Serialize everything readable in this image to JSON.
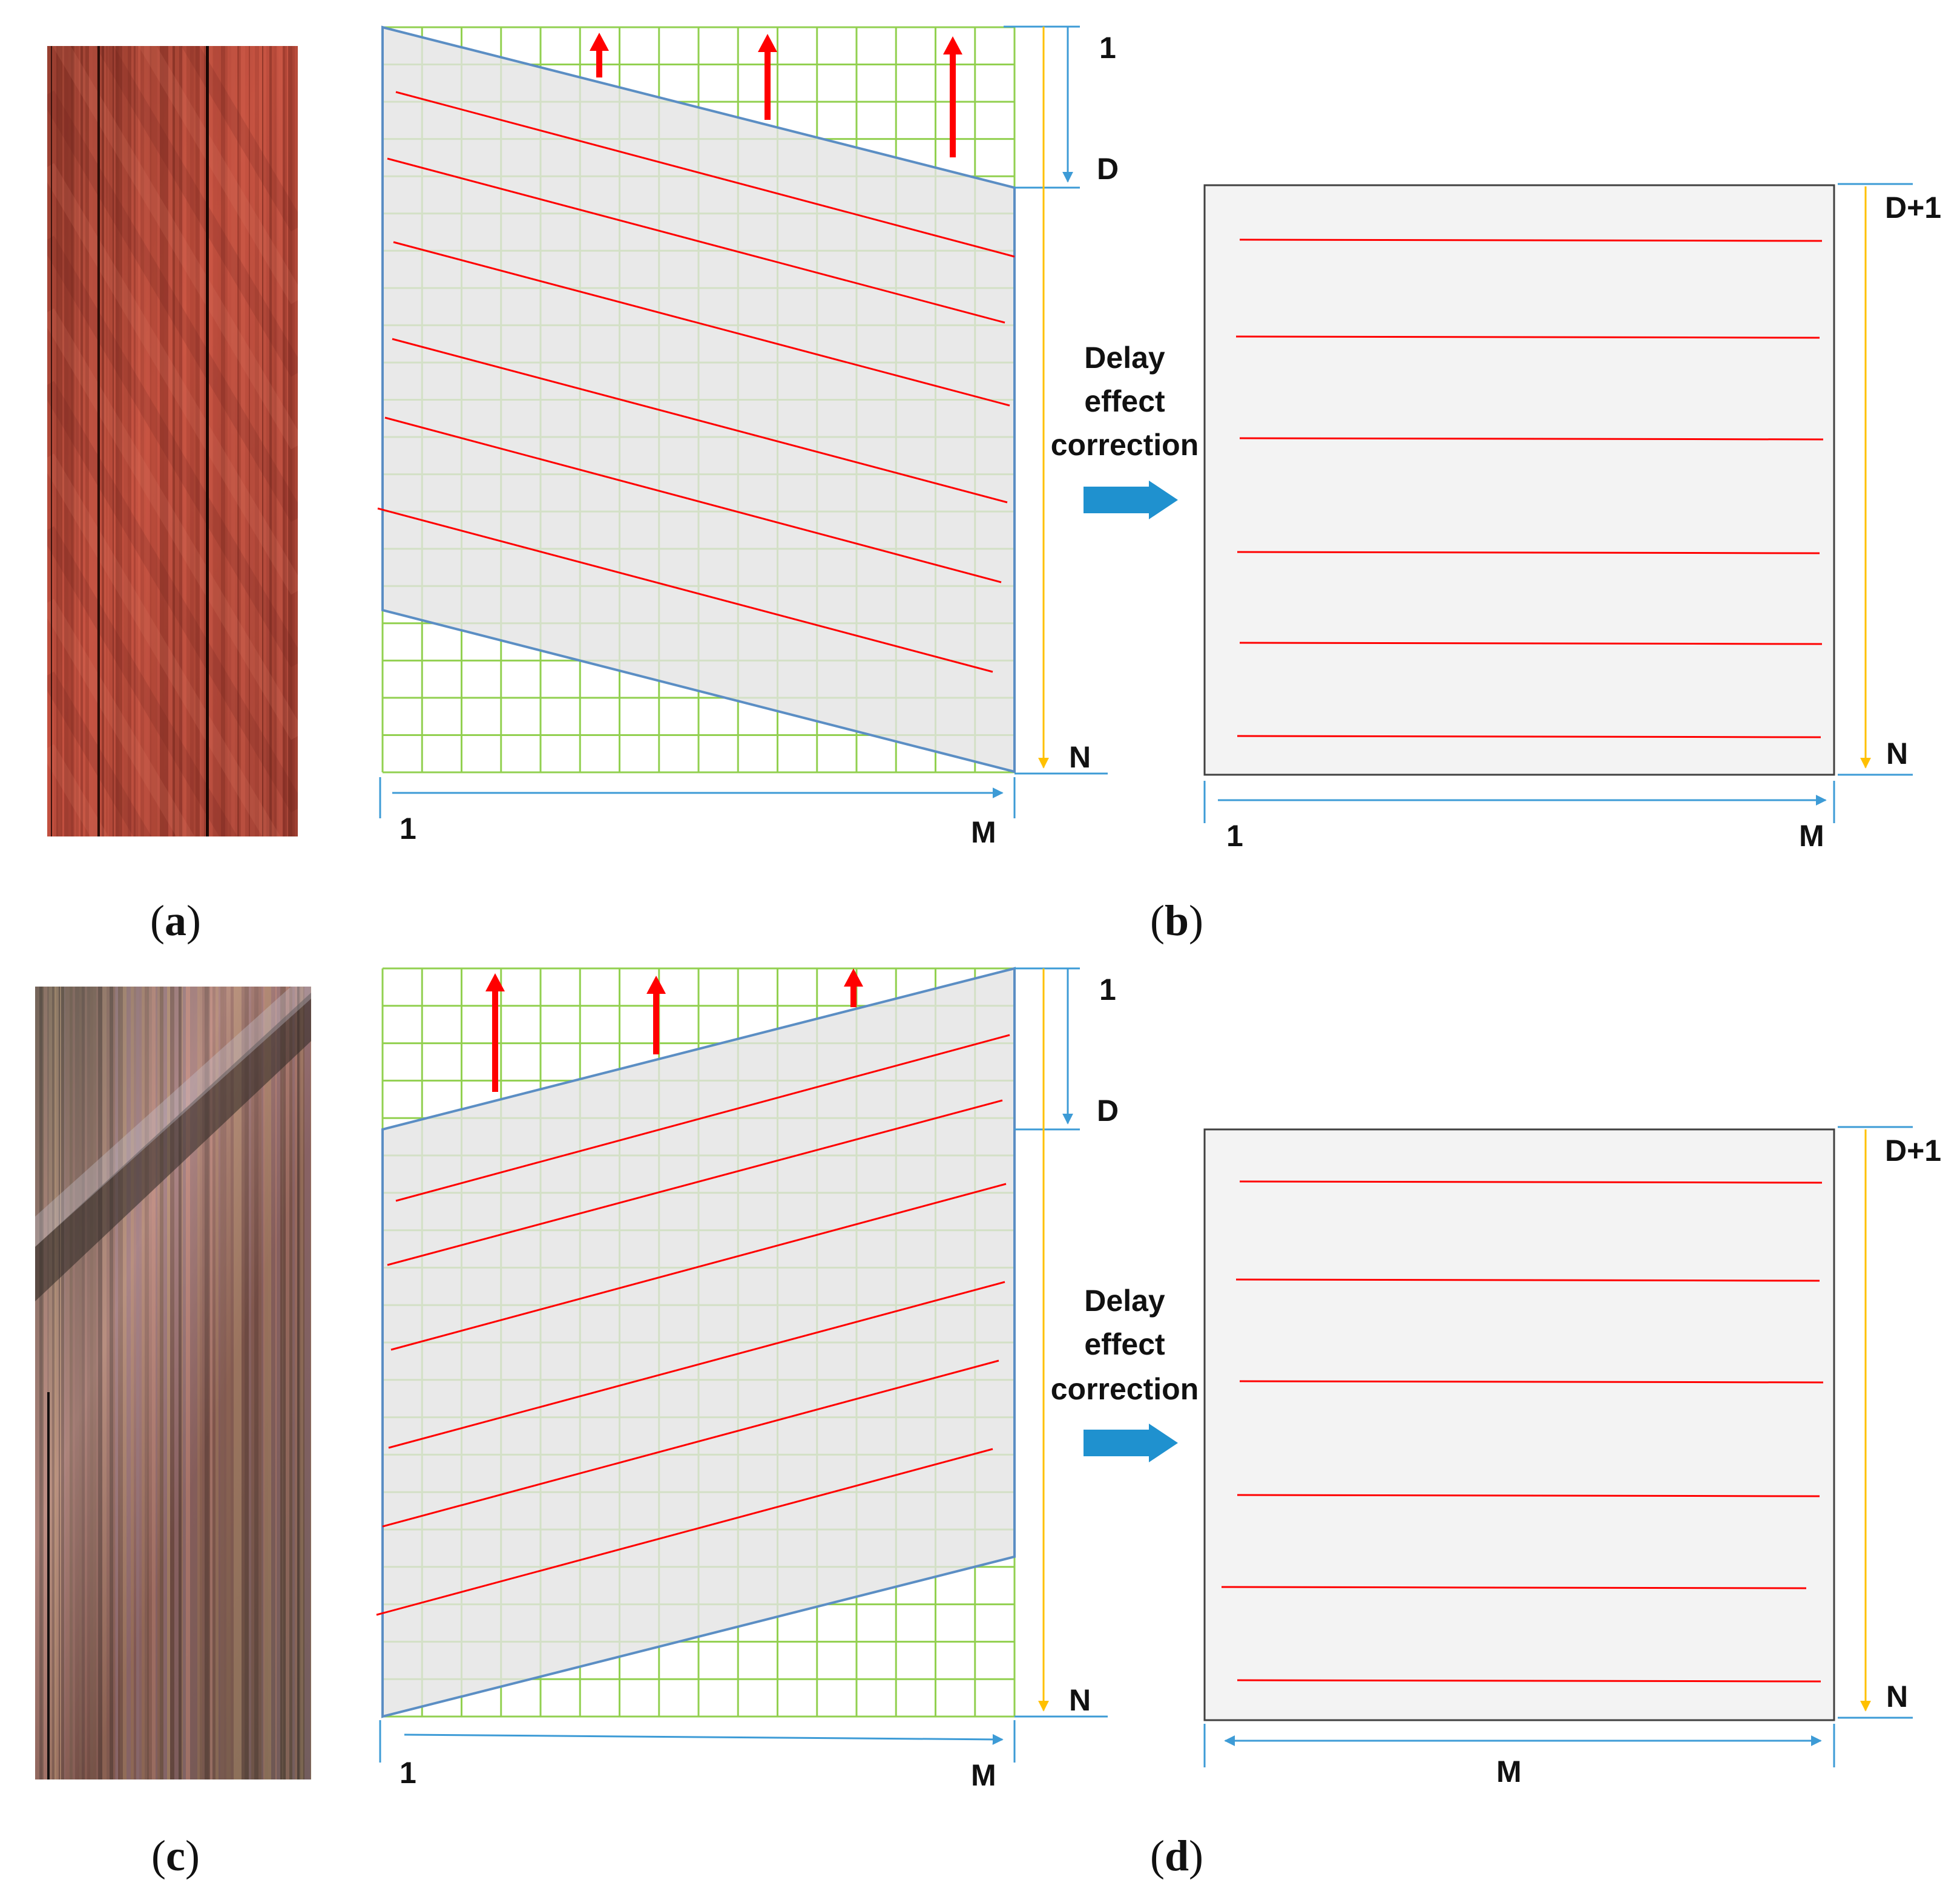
{
  "colors": {
    "grid": "#92d050",
    "band_fill": "#e3e3e3",
    "band_edge": "#5b8ec4",
    "scan_line": "#ff0000",
    "up_arrow": "#ff0000",
    "index_arrow": "#3d9bd6",
    "row_arrow": "#ffc000",
    "block_arrow": "#1f91cf",
    "output_fill": "#f3f3f3",
    "output_edge": "#404040"
  },
  "icons": {
    "correction_arrow": "right-block-arrow-icon",
    "compensation_arrow": "up-arrow-icon"
  },
  "panels": {
    "a": {
      "caption_open": "(",
      "caption_letter": "a",
      "caption_close": ")"
    },
    "b": {
      "caption_open": "(",
      "caption_letter": "b",
      "caption_close": ")",
      "label_row_start": "1",
      "label_row_delay": "D",
      "label_row_end": "N",
      "label_col_start": "1",
      "label_col_end": "M",
      "process_line1": "Delay",
      "process_line2": "effect",
      "process_line3": "correction",
      "out_row_start": "D+1",
      "out_row_end": "N",
      "out_col_start": "1",
      "out_col_end": "M"
    },
    "c": {
      "caption_open": "(",
      "caption_letter": "c",
      "caption_close": ")"
    },
    "d": {
      "caption_open": "(",
      "caption_letter": "d",
      "caption_close": ")",
      "label_row_start": "1",
      "label_row_delay": "D",
      "label_row_end": "N",
      "label_col_start": "1",
      "label_col_end": "M",
      "process_line1": "Delay",
      "process_line2": "effect",
      "process_line3": "correction",
      "out_row_start": "D+1",
      "out_row_end": "N",
      "out_col_width": "M"
    }
  }
}
